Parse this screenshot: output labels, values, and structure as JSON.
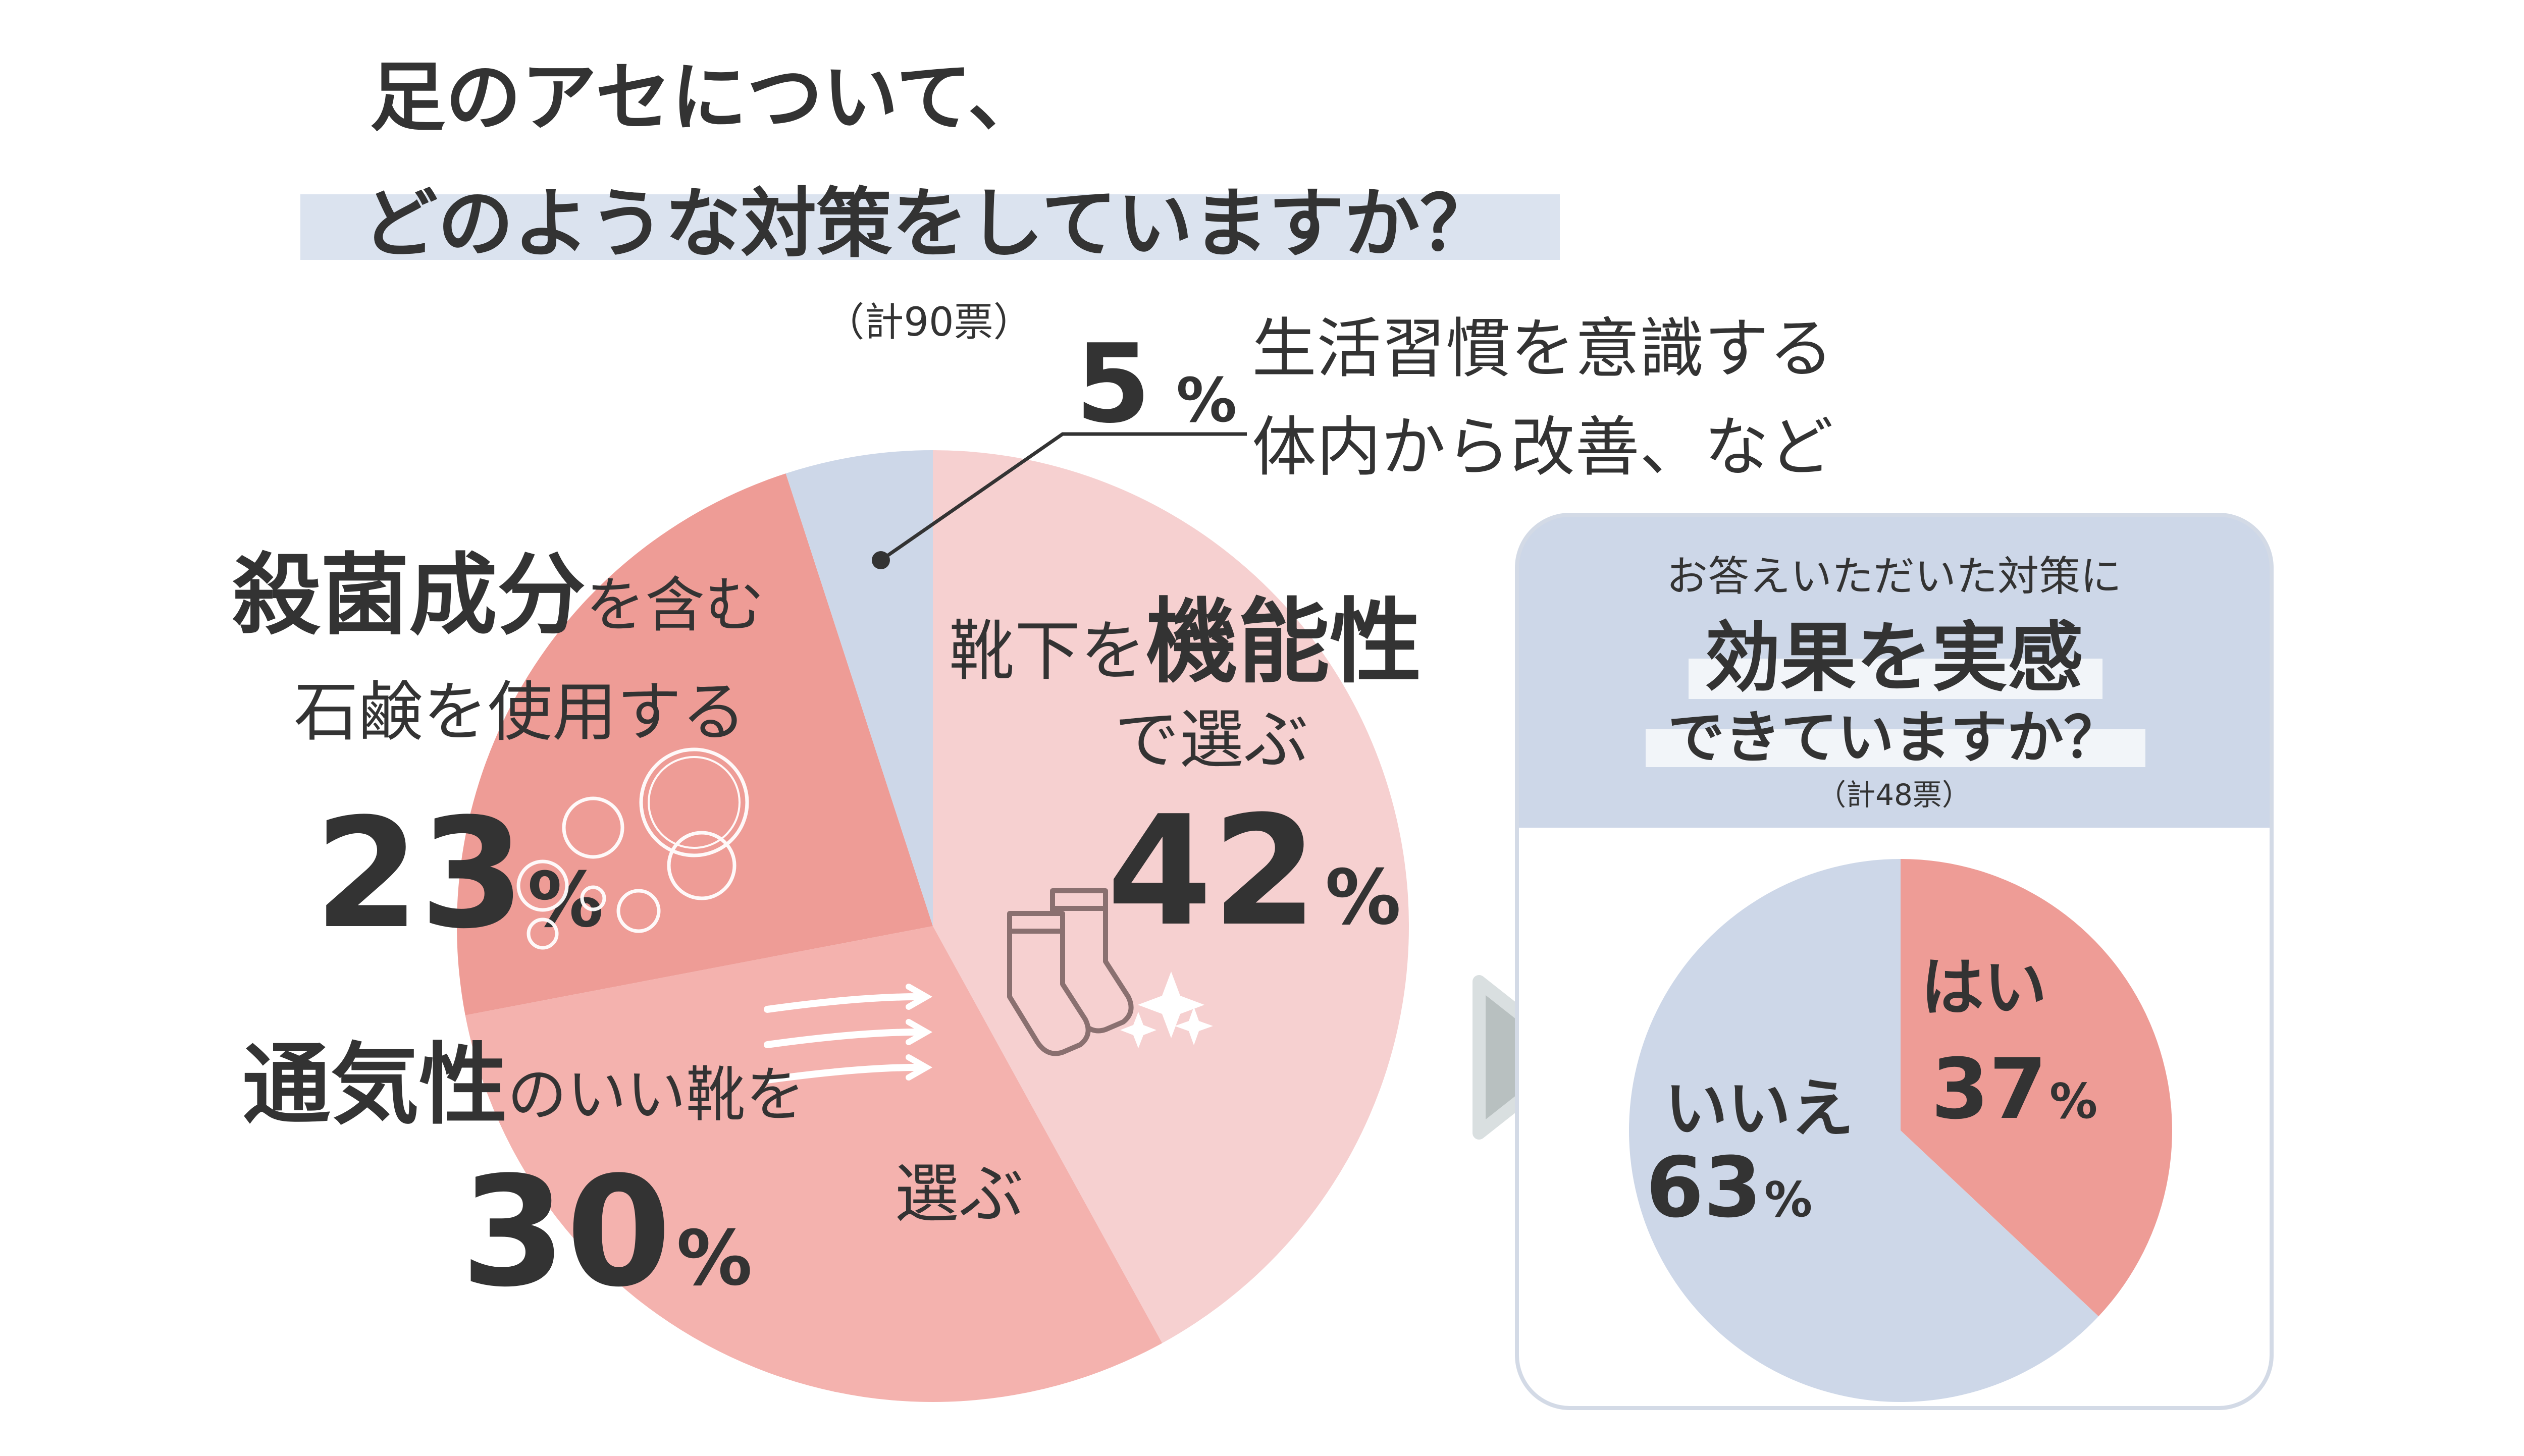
{
  "colors": {
    "text": "#333333",
    "highlight": "#dbe3ef",
    "panel_header": "#cdd7e8",
    "panel_border": "#d3dae6",
    "arrow": "#b8c0c0",
    "arrow_stroke": "#d9dfe0"
  },
  "chart_data": [
    {
      "type": "pie",
      "title_line1": "足のアセについて、",
      "title_line2": "どのような対策をしていますか？",
      "total_label": "（計90票）",
      "start_angle_deg": 0,
      "direction": "clockwise",
      "slices": [
        {
          "name": "socks",
          "label_main": "靴下を",
          "label_emph": "機能性",
          "label_sub": "で選ぶ",
          "value": 42,
          "value_text": "42",
          "unit": "%",
          "color": "#f6d0d0",
          "icon": "socks-icon"
        },
        {
          "name": "shoes",
          "label_emph": "通気性",
          "label_main": "のいい靴を",
          "label_sub": "選ぶ",
          "value": 30,
          "value_text": "30",
          "unit": "%",
          "color": "#f4b2ae",
          "icon": "wind-icon"
        },
        {
          "name": "soap",
          "label_emph": "殺菌成分",
          "label_main": "を含む",
          "label_sub": "石鹸を使用する",
          "value": 23,
          "value_text": "23",
          "unit": "%",
          "color": "#ee9c96",
          "icon": "bubbles-icon"
        },
        {
          "name": "other",
          "label_main": "生活習慣を意識する",
          "label_sub": "体内から改善、など",
          "value": 5,
          "value_text": "5",
          "unit": "%",
          "color": "#cdd7e8"
        }
      ]
    },
    {
      "type": "pie",
      "title_line1": "お答えいただいた対策に",
      "title_line2": "効果を実感",
      "title_line3": "できていますか？",
      "total_label": "（計48票）",
      "start_angle_deg": 0,
      "direction": "clockwise",
      "slices": [
        {
          "name": "yes",
          "label": "はい",
          "value": 37,
          "value_text": "37",
          "unit": "%",
          "color": "#ee9c96"
        },
        {
          "name": "no",
          "label": "いいえ",
          "value": 63,
          "value_text": "63",
          "unit": "%",
          "color": "#cdd7e8"
        }
      ]
    }
  ]
}
